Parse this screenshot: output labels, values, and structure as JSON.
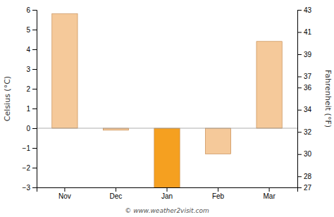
{
  "chart_data": {
    "type": "bar",
    "categories": [
      "Nov",
      "Dec",
      "Jan",
      "Feb",
      "Mar"
    ],
    "values": [
      5.8,
      -0.1,
      -3.0,
      -1.3,
      4.4
    ],
    "colors": [
      "#f5c99a",
      "#f5c99a",
      "#f5a020",
      "#f5c99a",
      "#f5c99a"
    ],
    "ylabel": "Celsius (°C)",
    "y2label": "Fahrenheit (°F)",
    "ylim": [
      -3.0,
      6.0
    ],
    "yticks": [
      -3,
      -2,
      -1,
      0,
      1,
      2,
      3,
      4,
      5,
      6
    ],
    "y2lim": [
      27,
      43
    ],
    "y2ticks": [
      27,
      28,
      30,
      32,
      34,
      36,
      37,
      39,
      41,
      43
    ],
    "grid": false,
    "annotations": [
      "© www.weather2visit.com"
    ]
  }
}
